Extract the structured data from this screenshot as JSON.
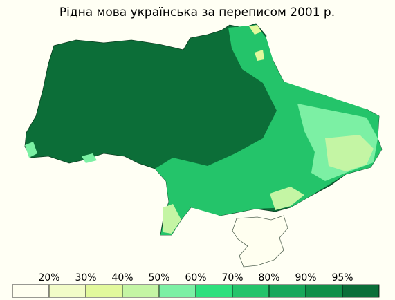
{
  "map": {
    "title": "Рідна мова українська за переписом 2001 р.",
    "legend": {
      "colors": [
        "#fffff0",
        "#f2fcc8",
        "#e2f99c",
        "#c4f5a4",
        "#7cf0a4",
        "#2ee07c",
        "#24c46a",
        "#18a85a",
        "#109048",
        "#0a6e38"
      ],
      "labels": [
        "20%",
        "30%",
        "40%",
        "50%",
        "60%",
        "70%",
        "80%",
        "90%",
        "95%"
      ]
    }
  }
}
